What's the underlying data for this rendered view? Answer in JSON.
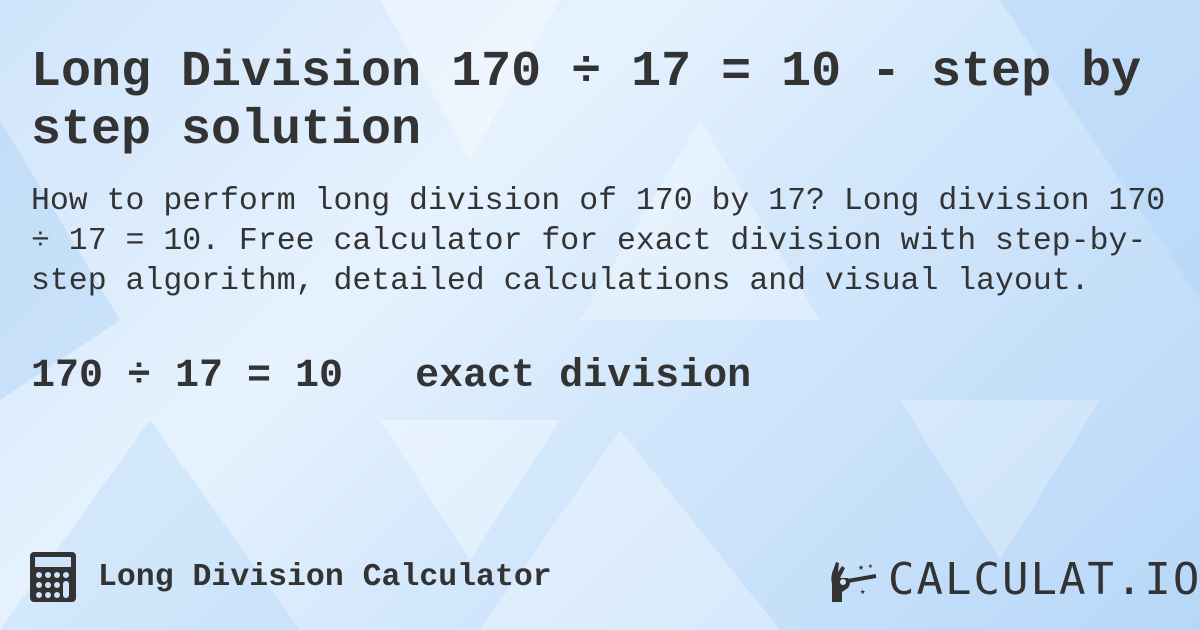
{
  "page": {
    "title": "Long Division 170 ÷ 17 = 10 - step by step solution",
    "description": "How to perform long division of 170 by 17? Long division 170 ÷ 17 = 10. Free calculator for exact division with step-by-step algorithm, detailed calculations and visual layout.",
    "result": "170 ÷ 17 = 10   exact division"
  },
  "footer": {
    "calculator_name": "Long Division Calculator",
    "calculator_icon": "calculator-icon",
    "brand": "CALCULAT.IO",
    "brand_icon": "magic-wand-hand-icon"
  },
  "colors": {
    "text": "#333333",
    "background": "#d4e8fc"
  }
}
